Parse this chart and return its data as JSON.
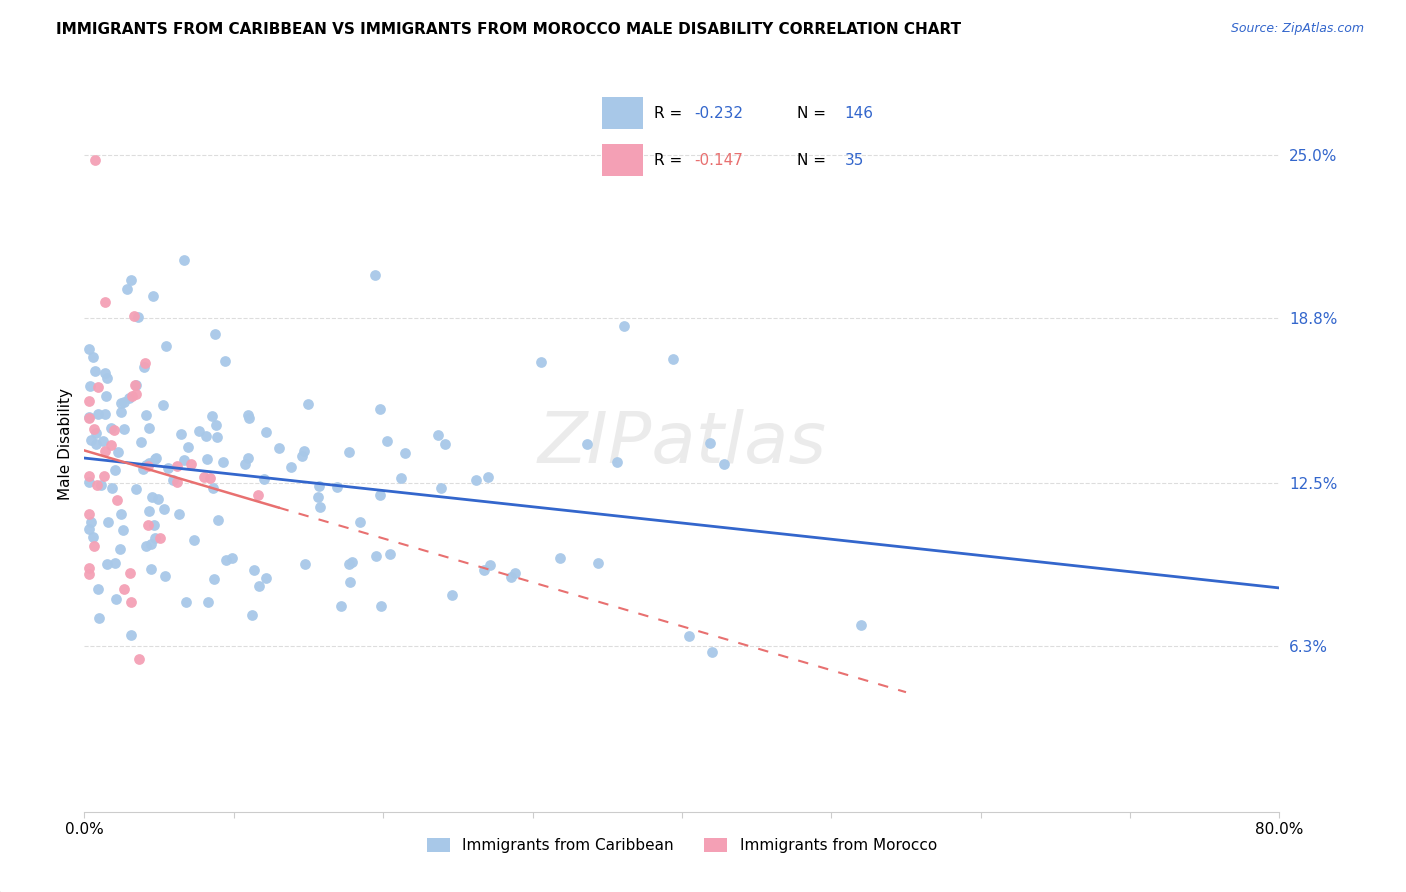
{
  "title": "IMMIGRANTS FROM CARIBBEAN VS IMMIGRANTS FROM MOROCCO MALE DISABILITY CORRELATION CHART",
  "source": "Source: ZipAtlas.com",
  "ylabel": "Male Disability",
  "x_min": 0.0,
  "x_max": 0.8,
  "y_min": 0.0,
  "y_max": 0.28,
  "y_ticks": [
    0.063,
    0.125,
    0.188,
    0.25
  ],
  "y_tick_labels": [
    "6.3%",
    "12.5%",
    "18.8%",
    "25.0%"
  ],
  "caribbean_color": "#a8c8e8",
  "morocco_color": "#f4a0b5",
  "trend_caribbean_color": "#3366cc",
  "trend_morocco_color": "#e87070",
  "R_caribbean": -0.232,
  "N_caribbean": 146,
  "R_morocco": -0.147,
  "N_morocco": 35,
  "watermark": "ZIPatlas",
  "legend_label_caribbean": "Immigrants from Caribbean",
  "legend_label_morocco": "Immigrants from Morocco"
}
